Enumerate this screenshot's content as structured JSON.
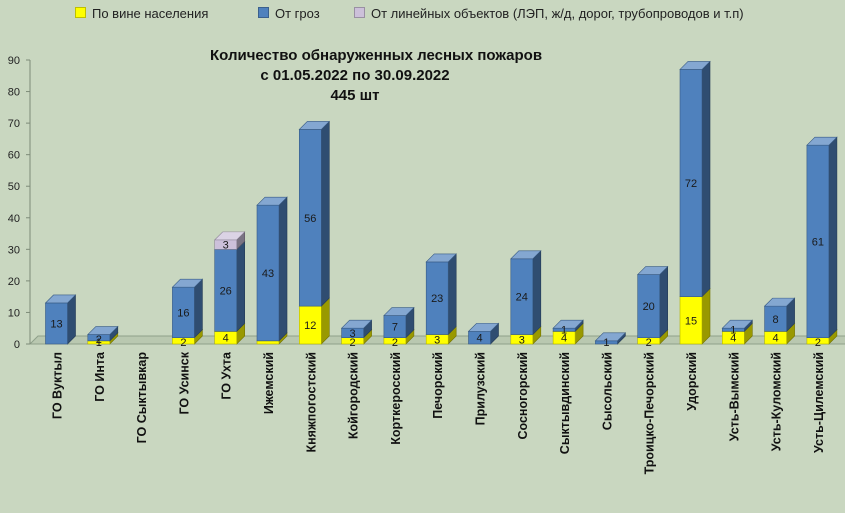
{
  "chart_data": {
    "type": "bar",
    "stacked": true,
    "three_d": true,
    "title_lines": [
      "Количество обнаруженных лесных пожаров",
      "с 01.05.2022  по  30.09.2022",
      "445 шт"
    ],
    "categories": [
      "ГО Вуктыл",
      "ГО Инта",
      "ГО Сыктывкар",
      "ГО Усинск",
      "ГО Ухта",
      "Ижемский",
      "Княжпогостский",
      "Койгородский",
      "Корткеросский",
      "Печорский",
      "Прилузский",
      "Сосногорский",
      "Сыктывдинский",
      "Сысольский",
      "Троицко-Печорский",
      "Удорский",
      "Усть-Вымский",
      "Усть-Куломский",
      "Усть-Цилемский"
    ],
    "series": [
      {
        "name": "По вине населения",
        "color": "#ffff00",
        "values": [
          0,
          1,
          0,
          2,
          4,
          1,
          12,
          2,
          2,
          3,
          0,
          3,
          4,
          0,
          2,
          15,
          4,
          4,
          2
        ]
      },
      {
        "name": "От гроз",
        "color": "#4f81bd",
        "values": [
          13,
          2,
          0,
          16,
          26,
          43,
          56,
          3,
          7,
          23,
          4,
          24,
          1,
          1,
          20,
          72,
          1,
          8,
          61
        ]
      },
      {
        "name": "От линейных объектов (ЛЭП, ж/д, дорог, трубопроводов  и т.п)",
        "color": "#ccc0da",
        "values": [
          0,
          0,
          0,
          0,
          3,
          0,
          0,
          0,
          0,
          0,
          0,
          0,
          0,
          0,
          0,
          0,
          0,
          0,
          0
        ]
      }
    ],
    "data_labels": [
      [
        "",
        "1",
        "",
        "2",
        "4",
        "",
        "12",
        "2",
        "2",
        "3",
        "",
        "3",
        "4",
        "",
        "2",
        "15",
        "4",
        "4",
        "2"
      ],
      [
        "13",
        "2",
        "",
        "16",
        "26",
        "43",
        "56",
        "3",
        "7",
        "23",
        "4",
        "24",
        "1",
        "1",
        "20",
        "72",
        "1",
        "8",
        "61"
      ],
      [
        "",
        "",
        "",
        "",
        "3",
        "",
        "",
        "",
        "",
        "",
        "",
        "",
        "",
        "",
        "",
        "",
        "",
        "",
        ""
      ]
    ],
    "y_ticks": [
      "0",
      "10",
      "20",
      "30",
      "40",
      "50",
      "60",
      "70",
      "80",
      "90"
    ],
    "ylim": [
      0,
      90
    ],
    "grid": false,
    "legend_position": "top"
  }
}
